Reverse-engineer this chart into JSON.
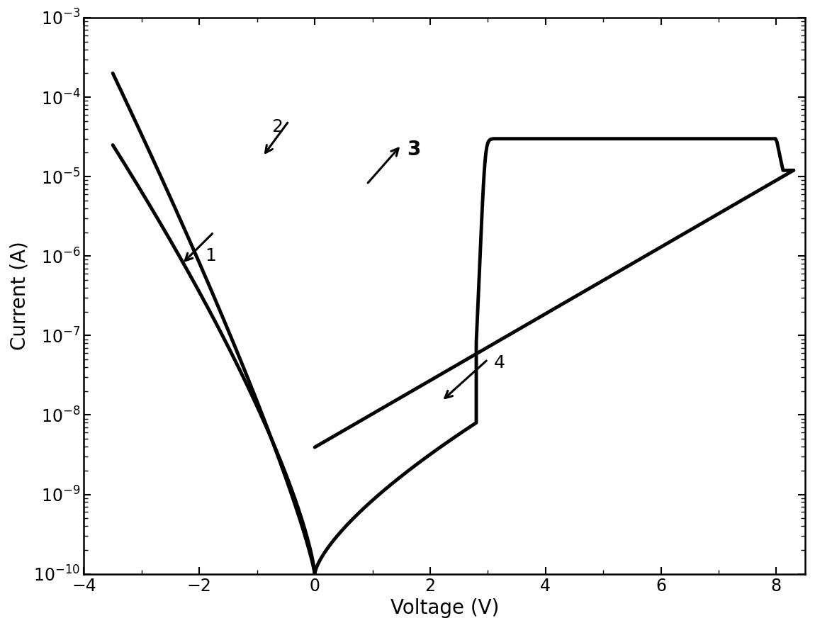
{
  "xlabel": "Voltage (V)",
  "ylabel": "Current (A)",
  "xlim": [
    -4,
    8.5
  ],
  "ylim_log": [
    -10,
    -3
  ],
  "background_color": "#ffffff",
  "line_color": "#000000",
  "line_width": 3.5,
  "tick_labelsize": 17,
  "xlabel_fontsize": 20,
  "ylabel_fontsize": 20
}
